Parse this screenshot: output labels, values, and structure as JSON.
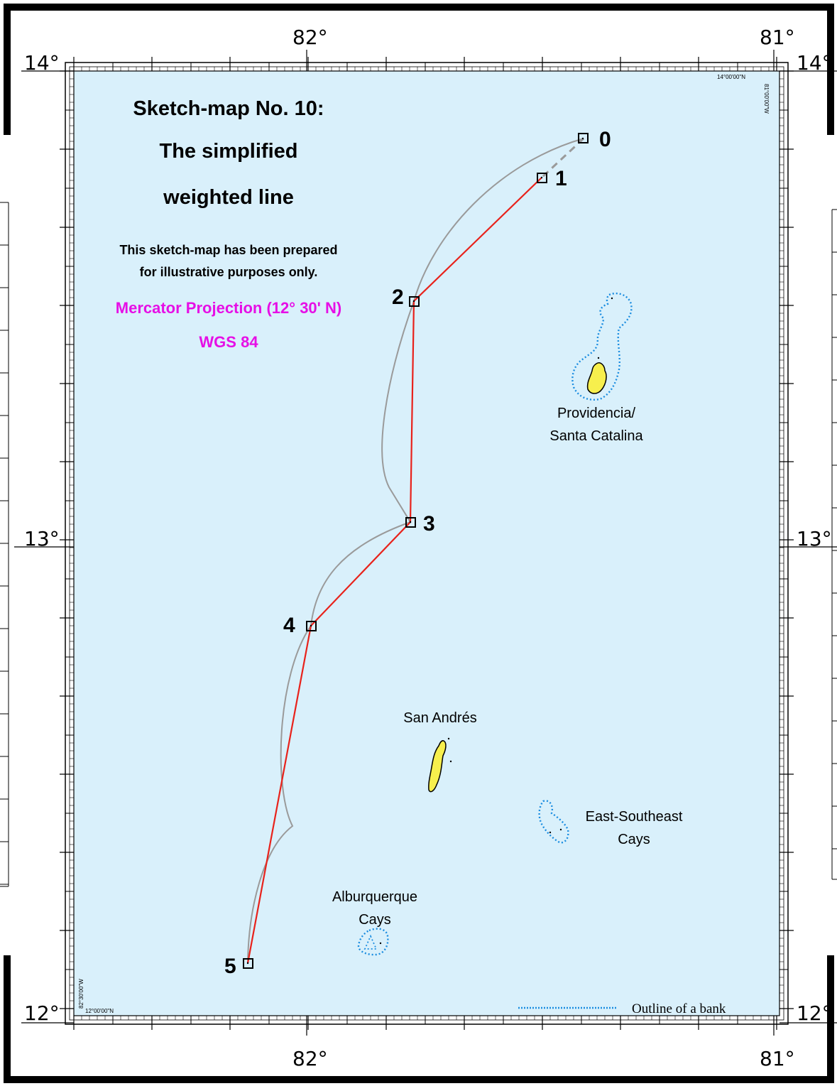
{
  "title": {
    "line1": "Sketch-map No. 10:",
    "line2": "The simplified",
    "line3": "weighted line"
  },
  "disclaimer": {
    "line1": "This sketch-map has been prepared",
    "line2": "for illustrative purposes only."
  },
  "projection": {
    "name": "Mercator Projection (12° 30' N)",
    "datum": "WGS 84"
  },
  "graticule": {
    "lon_82": "82°",
    "lon_81": "81°",
    "lat_14": "14°",
    "lat_13": "13°",
    "lat_12": "12°",
    "corner_top_lat": "14°00'00\"N",
    "corner_top_lon": "81°00'00\"W",
    "corner_bottom_lat": "12°00'00\"N",
    "corner_bottom_lon": "82°30'00\"W"
  },
  "points": [
    {
      "label": "0"
    },
    {
      "label": "1"
    },
    {
      "label": "2"
    },
    {
      "label": "3"
    },
    {
      "label": "4"
    },
    {
      "label": "5"
    }
  ],
  "places": {
    "providencia_1": "Providencia/",
    "providencia_2": "Santa Catalina",
    "san_andres": "San Andrés",
    "ese_cays_1": "East-Southeast",
    "ese_cays_2": "Cays",
    "alburquerque_1": "Alburquerque",
    "alburquerque_2": "Cays"
  },
  "legend": {
    "bank_outline": "Outline of a bank"
  },
  "colors": {
    "sea": "#d9f0fb",
    "land": "#f7ef4d",
    "simplified_line": "#e8221b",
    "weighted_line": "#9a9a9a",
    "bank_outline": "#1b8de0",
    "projection_text": "#e60fe6"
  }
}
